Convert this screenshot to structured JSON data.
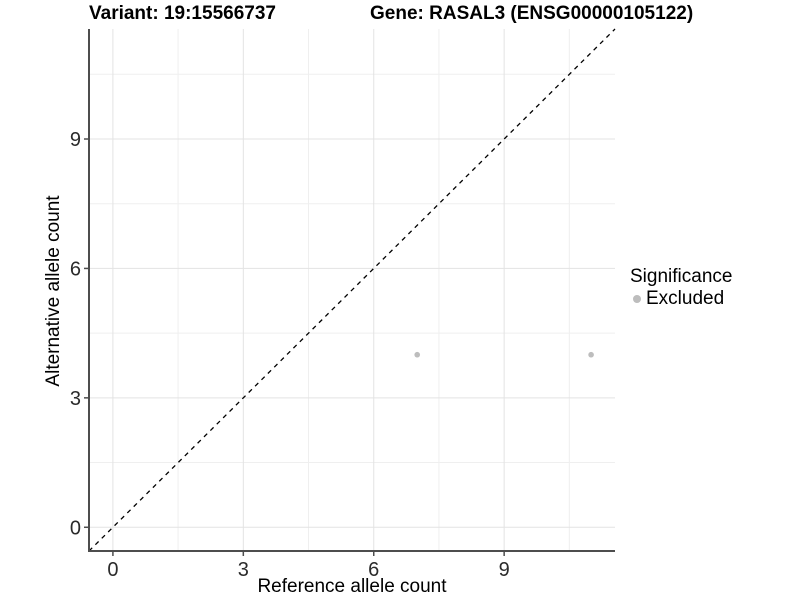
{
  "title": {
    "variant": "Variant: 19:15566737",
    "gene": "Gene: RASAL3 (ENSG00000105122)"
  },
  "chart_data": {
    "type": "scatter",
    "xlabel": "Reference allele count",
    "ylabel": "Alternative allele count",
    "xlim": [
      -0.55,
      11.55
    ],
    "ylim": [
      -0.55,
      11.55
    ],
    "x_ticks": [
      0,
      3,
      6,
      9
    ],
    "y_ticks": [
      0,
      3,
      6,
      9
    ],
    "x_minor_gridlines": [
      1.5,
      4.5,
      7.5,
      10.5
    ],
    "y_minor_gridlines": [
      1.5,
      4.5,
      7.5,
      10.5
    ],
    "grid": true,
    "identity_line": {
      "style": "dashed",
      "from": [
        -0.55,
        -0.55
      ],
      "to": [
        11.55,
        11.55
      ]
    },
    "series": [
      {
        "name": "Excluded",
        "color": "#bdbdbd",
        "points": [
          {
            "x": 7,
            "y": 4
          },
          {
            "x": 11,
            "y": 4
          }
        ]
      }
    ],
    "legend": {
      "title": "Significance",
      "position": "right",
      "items": [
        {
          "label": "Excluded",
          "color": "#bdbdbd"
        }
      ]
    },
    "colors": {
      "axis_line": "#4d4d4d",
      "tick_mark": "#4d4d4d",
      "grid_major": "#e3e3e3",
      "grid_minor": "#efefef",
      "identity_line": "#000000",
      "tick_label": "#2b2b2b",
      "background": "#ffffff"
    }
  }
}
